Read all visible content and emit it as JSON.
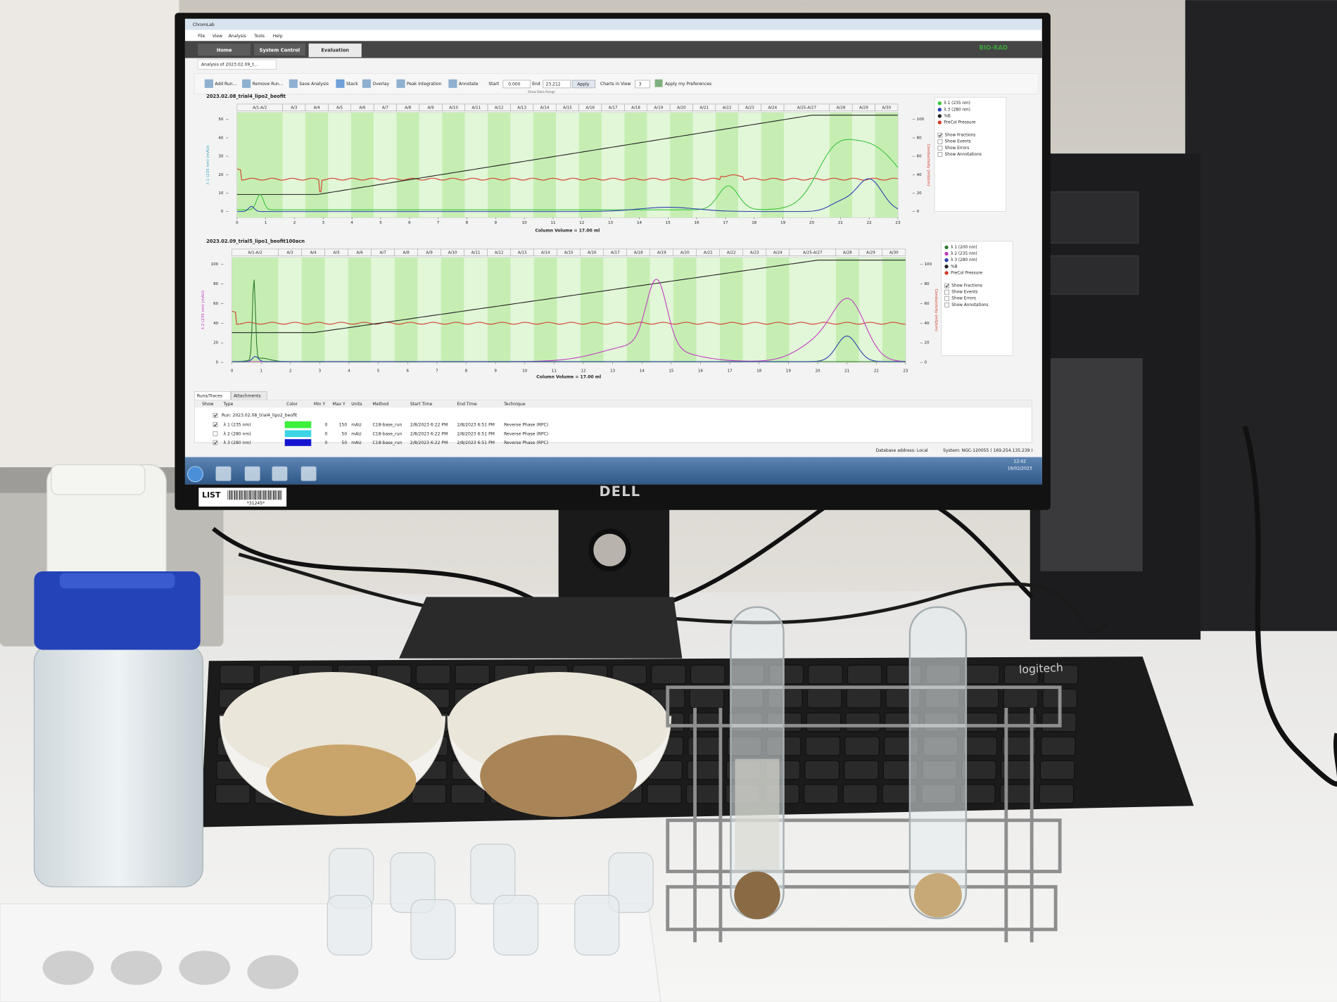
{
  "window": {
    "title": "ChromLab",
    "menu": [
      "File",
      "View",
      "Analysis",
      "Tools",
      "Help"
    ],
    "tabs": [
      "Home",
      "System Control",
      "Evaluation"
    ],
    "brand": "BIO-RAD",
    "doc_tab": "Analysis of 2023.02.09_t...",
    "toolbar": [
      "Add Run...",
      "Remove Run...",
      "Save Analysis",
      "Stack",
      "Overlay",
      "Peak Integration",
      "Annotate"
    ],
    "start_label": "Start",
    "start": "0.000",
    "end_label": "End",
    "end": "23.212",
    "apply": "Apply",
    "show_data_range": "Show Data Range",
    "charts_in_view_label": "Charts in View",
    "charts_in_view": "3",
    "apply_prefs": "Apply my Preferences"
  },
  "fractions": [
    "A/1-A/2",
    "A/3",
    "A/4",
    "A/5",
    "A/6",
    "A/7",
    "A/8",
    "A/9",
    "A/10",
    "A/11",
    "A/12",
    "A/13",
    "A/14",
    "A/15",
    "A/16",
    "A/17",
    "A/18",
    "A/19",
    "A/20",
    "A/21",
    "A/22",
    "A/23",
    "A/24",
    "A/25-A/27",
    "A/28",
    "A/29",
    "A/30"
  ],
  "charts": [
    {
      "title": "2023.02.08_trial4_lipo2_beofit",
      "x_label": "Column Volume = 17.00 ml",
      "xticks": [
        0,
        1,
        2,
        3,
        4,
        5,
        6,
        7,
        8,
        9,
        10,
        11,
        12,
        13,
        14,
        15,
        16,
        17,
        18,
        19,
        20,
        21,
        22,
        23
      ],
      "yticks": [
        0,
        10,
        20,
        30,
        40,
        50
      ],
      "y2ticks": [
        0,
        20,
        40,
        60,
        80,
        100
      ],
      "y_label": "λ 1 (235 nm) (mAU)",
      "y_label_color": "#3aa6c8",
      "y2_label": "Conductivity (mS/cm)",
      "legend": [
        {
          "name": "λ 1 (235 nm)",
          "color": "#3cc43c"
        },
        {
          "name": "λ 3 (280 nm)",
          "color": "#2b3fb0"
        },
        {
          "name": "%B",
          "color": "#222222"
        },
        {
          "name": "PreCol Pressure",
          "color": "#d23a2a"
        }
      ],
      "options": [
        "Show Fractions",
        "Show Events",
        "Show Errors",
        "Show Annotations"
      ],
      "options_checked": [
        true,
        false,
        false,
        false
      ]
    },
    {
      "title": "2023.02.09_trial5_lipo1_beofit100acn",
      "x_label": "Column Volume = 17.00 ml",
      "xticks": [
        0,
        1,
        2,
        3,
        4,
        5,
        6,
        7,
        8,
        9,
        10,
        11,
        12,
        13,
        14,
        15,
        16,
        17,
        18,
        19,
        20,
        21,
        22,
        23
      ],
      "yticks": [
        0,
        20,
        40,
        60,
        80,
        100
      ],
      "y2ticks": [
        0,
        20,
        40,
        60,
        80,
        100
      ],
      "y_label": "λ 2 (235 nm) (mAU)",
      "y_label_color": "#c03cc0",
      "y2_label": "Conductivity (mS/cm)",
      "legend": [
        {
          "name": "λ 1 (200 nm)",
          "color": "#2f7a2f"
        },
        {
          "name": "λ 2 (235 nm)",
          "color": "#c03cc0"
        },
        {
          "name": "λ 3 (280 nm)",
          "color": "#2b3fb0"
        },
        {
          "name": "%B",
          "color": "#222222"
        },
        {
          "name": "PreCol Pressure",
          "color": "#d23a2a"
        }
      ],
      "options": [
        "Show Fractions",
        "Show Events",
        "Show Errors",
        "Show Annotations"
      ],
      "options_checked": [
        true,
        false,
        false,
        false
      ]
    }
  ],
  "table": {
    "tabs": [
      "Runs/Traces",
      "Attachments"
    ],
    "headers": [
      "Show",
      "Type",
      "Color",
      "Min Y",
      "Max Y",
      "Units",
      "Method",
      "Start Time",
      "End Time",
      "Technique"
    ],
    "run": "Run: 2023.02.08_trial4_lipo2_beofit",
    "rows": [
      {
        "show": true,
        "type": "λ 1 (235 nm)",
        "color": "#3cf03c",
        "min": 0,
        "max": 150,
        "units": "mAU",
        "method": "C18-base_run",
        "start": "2/8/2023 6:22 PM",
        "end": "2/8/2023 6:51 PM",
        "technique": "Reverse Phase (RPC)"
      },
      {
        "show": false,
        "type": "λ 2 (280 nm)",
        "color": "#3cd4e4",
        "min": 0,
        "max": 50,
        "units": "mAU",
        "method": "C18-base_run",
        "start": "2/8/2023 6:22 PM",
        "end": "2/8/2023 6:51 PM",
        "technique": "Reverse Phase (RPC)"
      },
      {
        "show": true,
        "type": "λ 3 (280 nm)",
        "color": "#1414d0",
        "min": 0,
        "max": 50,
        "units": "mAU",
        "method": "C18-base_run",
        "start": "2/8/2023 6:22 PM",
        "end": "2/8/2023 6:51 PM",
        "technique": "Reverse Phase (RPC)"
      }
    ]
  },
  "status": {
    "db": "Database address: Local",
    "system": "System: NGC-120055 ( 169.254.135.239 )",
    "time": "12:42",
    "date": "16/02/2023"
  },
  "monitor_brand": "DELL",
  "sticker": {
    "label": "LIST",
    "code": "*31245*"
  },
  "keyboard_brand": "logitech"
}
